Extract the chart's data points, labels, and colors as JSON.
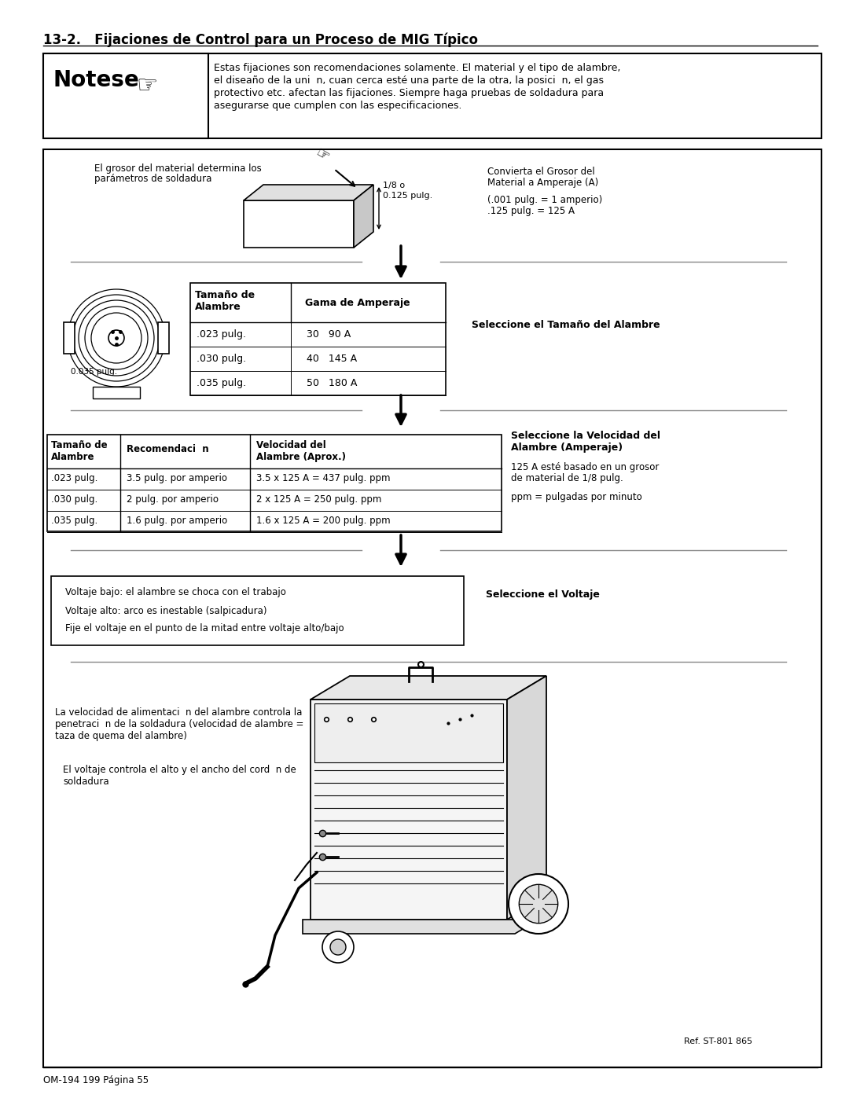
{
  "title": "13-2.   Fijaciones de Control para un Proceso de MIG Típico",
  "note_title": "Notese",
  "note_text1": "Estas fijaciones son recomendaciones solamente. El material y el tipo de alambre,",
  "note_text2": "el diseaño de la uni  n, cuan cerca esté una parte de la otra, la posici  n, el gas",
  "note_text3": "protectivo etc. afectan las fijaciones. Siempre haga pruebas de soldadura para",
  "note_text4": "asegurarse que cumplen con las especificaciones.",
  "section1_text1": "El grosor del material determina los",
  "section1_text2": "parámetros de soldadura",
  "section1_right1": "Convierta el Grosor del",
  "section1_right2": "Material a Amperaje (A)",
  "section1_right3": "(.001 pulg. = 1 amperio)",
  "section1_right4": ".125 pulg. = 125 A",
  "section1_label1": "1/8 o",
  "section1_label2": "0.125 pulg.",
  "table1_header1": "Tamaño de\nAlambre",
  "table1_header2": "Gama de Amperaje",
  "table1_rows": [
    [
      ".023 pulg.",
      "30   90 A"
    ],
    [
      ".030 pulg.",
      "40   145 A"
    ],
    [
      ".035 pulg.",
      "50   180 A"
    ]
  ],
  "wire_label": "0.035 pulg.",
  "select1": "Seleccione el Tamaño del Alambre",
  "table2_header1": "Tamaño de\nAlambre",
  "table2_header2": "Recomendaci  n",
  "table2_header3": "Velocidad del\nAlambre (Aprox.)",
  "table2_rows": [
    [
      ".023 pulg.",
      "3.5 pulg. por amperio",
      "3.5 x 125 A = 437 pulg. ppm"
    ],
    [
      ".030 pulg.",
      "2 pulg. por amperio",
      "2 x 125 A = 250 pulg. ppm"
    ],
    [
      ".035 pulg.",
      "1.6 pulg. por amperio",
      "1.6 x 125 A = 200 pulg. ppm"
    ]
  ],
  "select2_line1": "Seleccione la Velocidad del",
  "select2_line2": "Alambre (Amperaje)",
  "select2_note1": "125 A esté basado en un grosor",
  "select2_note2": "de material de 1/8 pulg.",
  "select2_note3": "ppm = pulgadas por minuto",
  "voltage_text1": "Voltaje bajo: el alambre se choca con el trabajo",
  "voltage_text2": "Voltaje alto: arco es inestable (salpicadura)",
  "voltage_text3": "Fije el voltaje en el punto de la mitad entre voltaje alto/bajo",
  "select3": "Seleccione el Voltaje",
  "bottom_text1": "La velocidad de alimentaci  n del alambre controla la",
  "bottom_text2": "penetraci  n de la soldadura (velocidad de alambre =",
  "bottom_text3": "taza de quema del alambre)",
  "bottom_text4": "El voltaje controla el alto y el ancho del cord  n de",
  "bottom_text5": "soldadura",
  "ref_text": "Ref. ST-801 865",
  "footer_text": "OM-194 199 Página 55",
  "bg_color": "#ffffff"
}
